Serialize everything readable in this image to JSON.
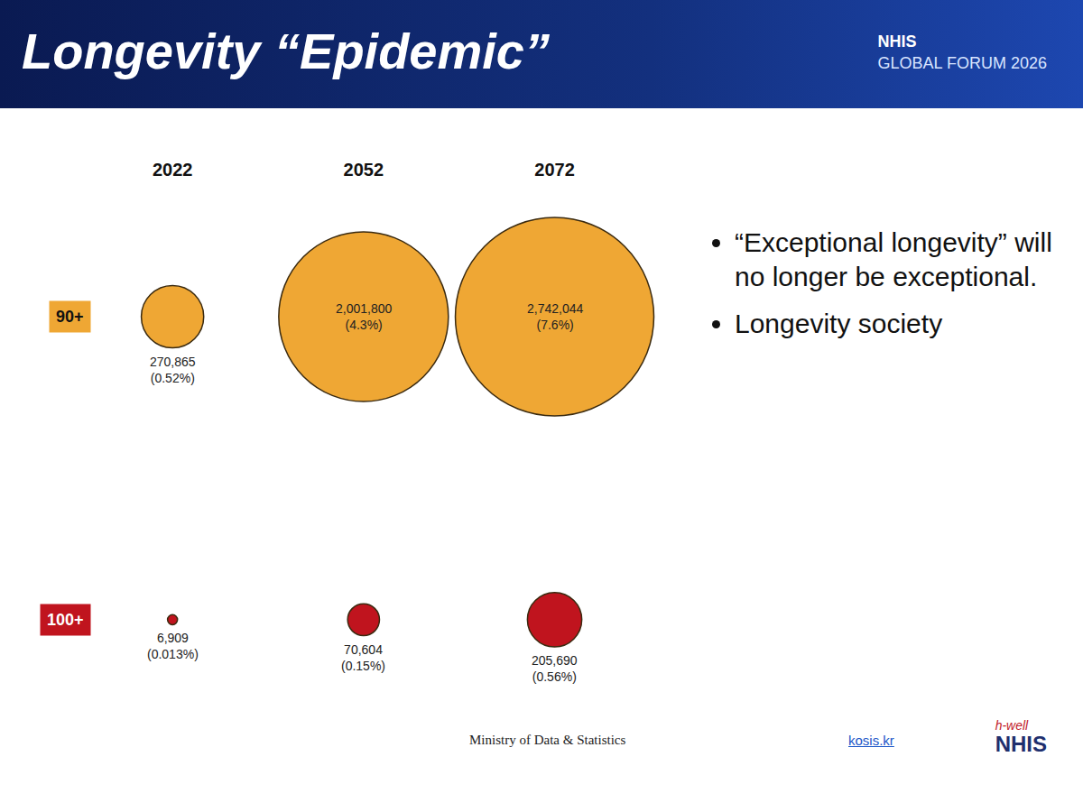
{
  "slide": {
    "title": "Longevity “Epidemic”",
    "forum": [
      "NHIS",
      "GLOBAL FORUM 2026"
    ],
    "bullets": [
      "“Exceptional longevity” will no longer be exceptional.",
      "Longevity society"
    ],
    "source": "Ministry of Data & Statistics",
    "link": "kosis.kr",
    "logo": [
      "h-well",
      "NHIS"
    ]
  },
  "chart_data": {
    "type": "bubble",
    "categories": [
      "2022",
      "2052",
      "2072"
    ],
    "data_labels": true,
    "grid": false,
    "tick_labels": "x",
    "marker": "circle",
    "series": [
      {
        "name": "90+",
        "color": "#efa734",
        "values": [
          270865,
          2001800,
          2742044
        ],
        "value_labels": [
          "270,865",
          "2,001,800",
          "2,742,044"
        ],
        "shares": [
          0.52,
          4.3,
          7.6
        ],
        "share_labels": [
          "(0.52%)",
          "(4.3%)",
          "(7.6%)"
        ]
      },
      {
        "name": "100+",
        "color": "#c0141e",
        "values": [
          6909,
          70604,
          205690
        ],
        "value_labels": [
          "6,909",
          "70,604",
          "205,690"
        ],
        "shares": [
          0.013,
          0.15,
          0.56
        ],
        "share_labels": [
          "(0.013%)",
          "(0.15%)",
          "(0.56%)"
        ]
      }
    ]
  }
}
